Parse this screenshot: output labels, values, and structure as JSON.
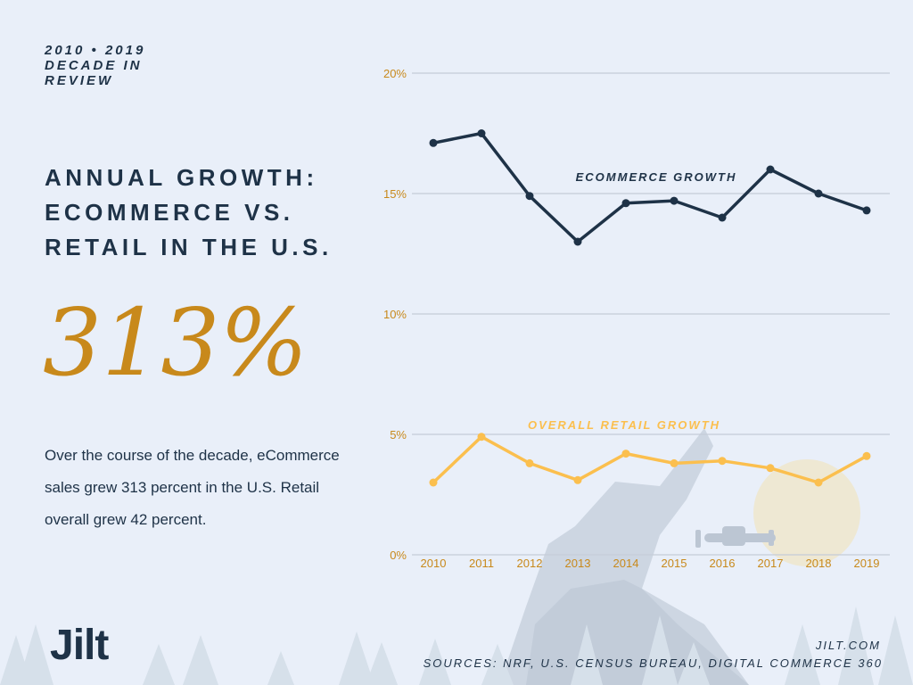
{
  "header": {
    "eyebrow": "2010 • 2019 DECADE IN REVIEW"
  },
  "headline": "ANNUAL GROWTH: ECOMMERCE VS. RETAIL IN THE U.S.",
  "stat": {
    "value": "313%"
  },
  "summary": "Over the course of the decade, eCommerce sales grew 313 percent in the U.S. Retail overall grew 42 percent.",
  "brand": {
    "logo": "Jilt",
    "site": "JILT.COM"
  },
  "footer": {
    "sources": "SOURCES: NRF, U.S. CENSUS BUREAU, DIGITAL COMMERCE 360"
  },
  "colors": {
    "background": "#e9eff9",
    "navy": "#1e3247",
    "gold": "#c8891b",
    "retail_line": "#fbbf4e",
    "grid": "#c5ccd8"
  },
  "chart_data": {
    "type": "line",
    "x": [
      "2010",
      "2011",
      "2012",
      "2013",
      "2014",
      "2015",
      "2016",
      "2017",
      "2018",
      "2019"
    ],
    "series": [
      {
        "name": "ECOMMERCE GROWTH",
        "values": [
          17.1,
          17.5,
          14.9,
          13.0,
          14.6,
          14.7,
          14.0,
          16.0,
          15.0,
          14.3
        ]
      },
      {
        "name": "OVERALL RETAIL GROWTH",
        "values": [
          3.0,
          4.9,
          3.8,
          3.1,
          4.2,
          3.8,
          3.9,
          3.6,
          3.0,
          4.1
        ]
      }
    ],
    "yticks": [
      0,
      5,
      10,
      15,
      20
    ],
    "ytick_labels": [
      "0%",
      "5%",
      "10%",
      "15%",
      "20%"
    ],
    "ylim": [
      0,
      20
    ],
    "grid": true,
    "title": "",
    "xlabel": "",
    "ylabel": ""
  }
}
